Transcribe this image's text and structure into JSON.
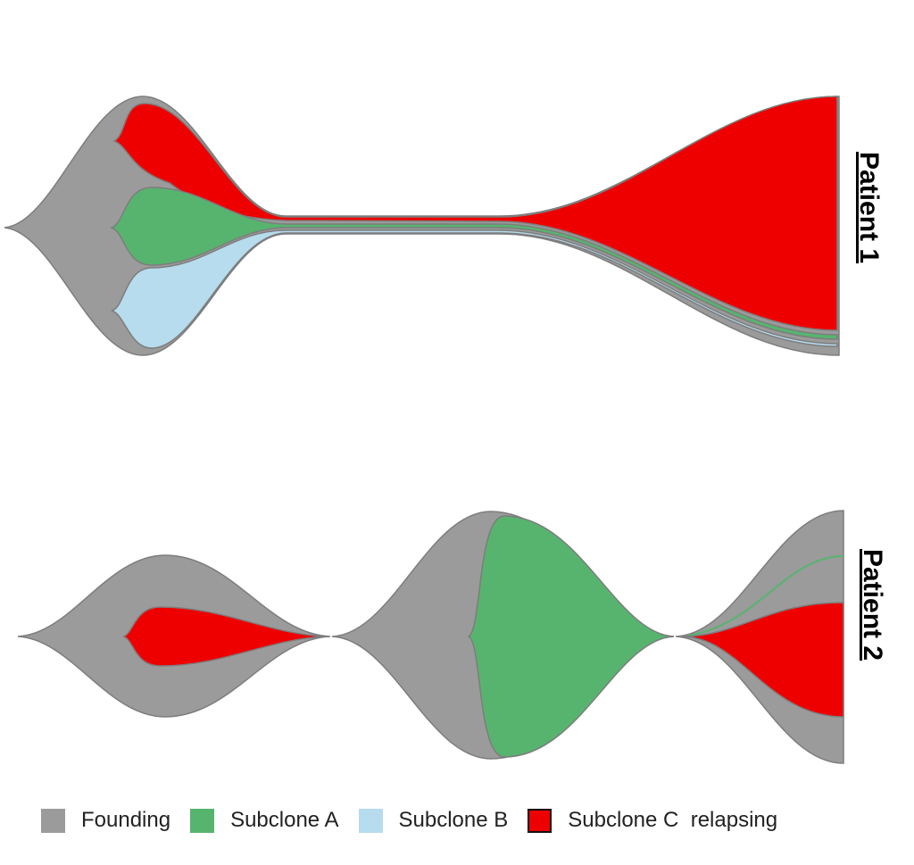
{
  "patients": [
    {
      "label": "Patient 1"
    },
    {
      "label": "Patient 2"
    }
  ],
  "legend": [
    {
      "label": "Founding",
      "color": "#9b9b9b"
    },
    {
      "label": "Subclone A",
      "color": "#57b46f"
    },
    {
      "label": "Subclone B",
      "color": "#b6dced"
    },
    {
      "label": "Subclone C  relapsing",
      "color": "#ee0000"
    }
  ]
}
